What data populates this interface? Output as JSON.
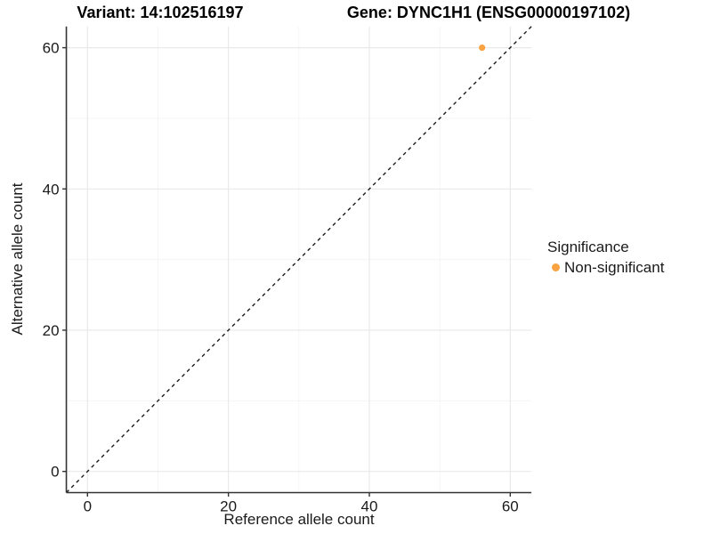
{
  "chart_data": {
    "type": "scatter",
    "title_left": "Variant: 14:102516197",
    "title_right": "Gene: DYNC1H1 (ENSG00000197102)",
    "xlabel": "Reference allele count",
    "ylabel": "Alternative allele count",
    "xlim": [
      -3,
      63
    ],
    "ylim": [
      -3,
      63
    ],
    "xticks": [
      0,
      20,
      40,
      60
    ],
    "yticks": [
      0,
      20,
      40,
      60
    ],
    "minor_xticks": [
      10,
      30,
      50
    ],
    "minor_yticks": [
      10,
      30,
      50
    ],
    "grid": true,
    "legend_position": "right",
    "identity_line": {
      "style": "dashed",
      "equation": "y = x",
      "color": "#1A1A1A"
    },
    "series": [
      {
        "name": "Non-significant",
        "color": "#F9A242",
        "points": [
          {
            "x": 56,
            "y": 60
          }
        ]
      }
    ],
    "legend": {
      "title": "Significance",
      "items": [
        {
          "label": "Non-significant",
          "color": "#F9A242"
        }
      ]
    },
    "colors": {
      "point": "#F9A242",
      "identity_line": "#1A1A1A",
      "axis_line": "#333333",
      "tick_mark": "#333333",
      "tick_label": "#1A1A1A",
      "grid_major": "#E9E9E9",
      "grid_minor": "#F4F4F4",
      "background": "#FFFFFF"
    }
  }
}
